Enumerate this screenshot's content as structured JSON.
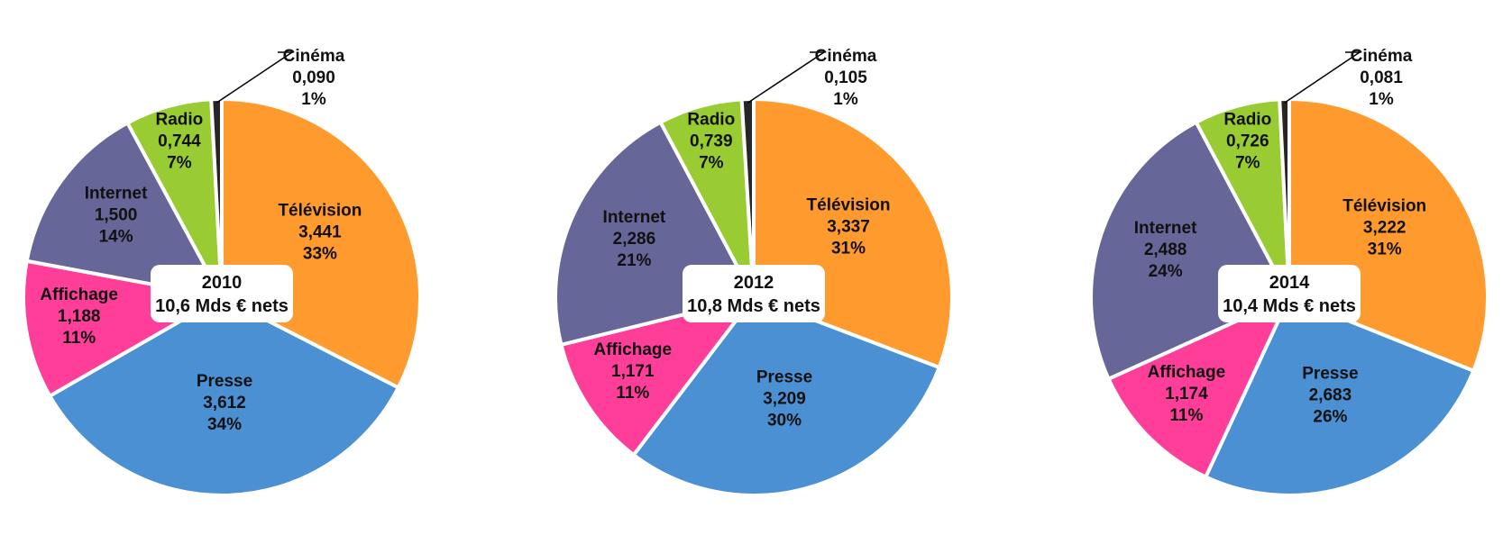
{
  "colors": {
    "Télévision": "#FF9A2E",
    "Presse": "#4A90D2",
    "Affichage": "#FF3E9A",
    "Internet": "#666699",
    "Radio": "#99CC33",
    "Cinéma": "#262626"
  },
  "chart_data": [
    {
      "type": "pie",
      "center_label": [
        "2010",
        "10,6 Mds € nets"
      ],
      "slices": [
        {
          "name": "Télévision",
          "value": "3,441",
          "pct": "33%",
          "v": 3.441
        },
        {
          "name": "Presse",
          "value": "3,612",
          "pct": "34%",
          "v": 3.612
        },
        {
          "name": "Affichage",
          "value": "1,188",
          "pct": "11%",
          "v": 1.188
        },
        {
          "name": "Internet",
          "value": "1,500",
          "pct": "14%",
          "v": 1.5
        },
        {
          "name": "Radio",
          "value": "0,744",
          "pct": "7%",
          "v": 0.744
        },
        {
          "name": "Cinéma",
          "value": "0,090",
          "pct": "1%",
          "v": 0.09
        }
      ]
    },
    {
      "type": "pie",
      "center_label": [
        "2012",
        "10,8 Mds € nets"
      ],
      "slices": [
        {
          "name": "Télévision",
          "value": "3,337",
          "pct": "31%",
          "v": 3.337
        },
        {
          "name": "Presse",
          "value": "3,209",
          "pct": "30%",
          "v": 3.209
        },
        {
          "name": "Affichage",
          "value": "1,171",
          "pct": "11%",
          "v": 1.171
        },
        {
          "name": "Internet",
          "value": "2,286",
          "pct": "21%",
          "v": 2.286
        },
        {
          "name": "Radio",
          "value": "0,739",
          "pct": "7%",
          "v": 0.739
        },
        {
          "name": "Cinéma",
          "value": "0,105",
          "pct": "1%",
          "v": 0.105
        }
      ]
    },
    {
      "type": "pie",
      "center_label": [
        "2014",
        "10,4 Mds € nets"
      ],
      "slices": [
        {
          "name": "Télévision",
          "value": "3,222",
          "pct": "31%",
          "v": 3.222
        },
        {
          "name": "Presse",
          "value": "2,683",
          "pct": "26%",
          "v": 2.683
        },
        {
          "name": "Affichage",
          "value": "1,174",
          "pct": "11%",
          "v": 1.174
        },
        {
          "name": "Internet",
          "value": "2,488",
          "pct": "24%",
          "v": 2.488
        },
        {
          "name": "Radio",
          "value": "0,726",
          "pct": "7%",
          "v": 0.726
        },
        {
          "name": "Cinéma",
          "value": "0,081",
          "pct": "1%",
          "v": 0.081
        }
      ]
    }
  ]
}
